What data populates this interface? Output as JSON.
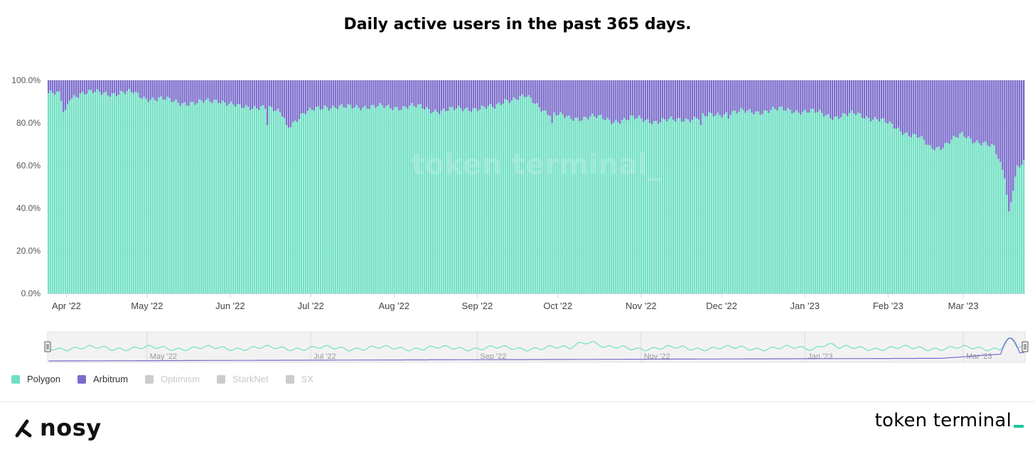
{
  "title": "Daily active users in the past 365 days.",
  "colors": {
    "polygon": "#6fe0c3",
    "arbitrum": "#7b6ccb",
    "inactive": "#cccccc"
  },
  "chart_data": {
    "type": "bar",
    "stacked": true,
    "percent": true,
    "ylim": [
      0,
      100
    ],
    "y_ticks": [
      "0.0%",
      "20.0%",
      "40.0%",
      "60.0%",
      "80.0%",
      "100.0%"
    ],
    "x_ticks": [
      "Apr '22",
      "May '22",
      "Jun '22",
      "Jul '22",
      "Aug '22",
      "Sep '22",
      "Oct '22",
      "Nov '22",
      "Dec '22",
      "Jan '23",
      "Feb '23",
      "Mar '23"
    ],
    "x_start": "2022-03-25",
    "x_end": "2023-03-24",
    "series": [
      {
        "name": "Polygon",
        "color": "#6fe0c3",
        "knots": [
          [
            0,
            94
          ],
          [
            5,
            93
          ],
          [
            8,
            85
          ],
          [
            10,
            92
          ],
          [
            15,
            94
          ],
          [
            30,
            94
          ],
          [
            40,
            94
          ],
          [
            45,
            92
          ],
          [
            60,
            90
          ],
          [
            70,
            89
          ],
          [
            80,
            91
          ],
          [
            90,
            87
          ],
          [
            100,
            88
          ],
          [
            110,
            84
          ],
          [
            113,
            79
          ],
          [
            120,
            84
          ],
          [
            130,
            88
          ],
          [
            140,
            87
          ],
          [
            150,
            88
          ],
          [
            160,
            87
          ],
          [
            170,
            88
          ],
          [
            180,
            86
          ],
          [
            190,
            86
          ],
          [
            200,
            87
          ],
          [
            210,
            87
          ],
          [
            215,
            91
          ],
          [
            225,
            92
          ],
          [
            235,
            85
          ],
          [
            245,
            82
          ],
          [
            255,
            83
          ],
          [
            265,
            81
          ],
          [
            275,
            82
          ],
          [
            285,
            81
          ],
          [
            295,
            81
          ],
          [
            300,
            82
          ],
          [
            310,
            83
          ],
          [
            320,
            85
          ],
          [
            330,
            85
          ],
          [
            340,
            86
          ],
          [
            350,
            86
          ],
          [
            360,
            85
          ],
          [
            370,
            83
          ],
          [
            380,
            84
          ],
          [
            390,
            82
          ],
          [
            400,
            77
          ],
          [
            410,
            73
          ],
          [
            415,
            68
          ],
          [
            420,
            69
          ],
          [
            425,
            72
          ],
          [
            430,
            74
          ],
          [
            435,
            72
          ],
          [
            440,
            71
          ],
          [
            445,
            68
          ],
          [
            448,
            60
          ],
          [
            450,
            55
          ],
          [
            452,
            38
          ],
          [
            454,
            50
          ],
          [
            456,
            60
          ],
          [
            460,
            62
          ]
        ],
        "dips": [
          [
            7,
            85
          ],
          [
            103,
            79
          ],
          [
            112,
            79
          ],
          [
            237,
            80
          ],
          [
            307,
            79
          ],
          [
            320,
            82
          ]
        ]
      },
      {
        "name": "Arbitrum",
        "color": "#7b6ccb",
        "note": "remainder to 100%"
      }
    ],
    "legend": [
      {
        "name": "Polygon",
        "active": true
      },
      {
        "name": "Arbitrum",
        "active": true
      },
      {
        "name": "Optimism",
        "active": false
      },
      {
        "name": "StarkNet",
        "active": false
      },
      {
        "name": "SX",
        "active": false
      }
    ],
    "navigator_labels": [
      "May '22",
      "Jul '22",
      "Sep '22",
      "Nov '22",
      "Jan '23",
      "Mar '23"
    ],
    "watermark": "token terminal_"
  },
  "footer": {
    "brand_left": "nosy",
    "brand_right": "token terminal"
  }
}
